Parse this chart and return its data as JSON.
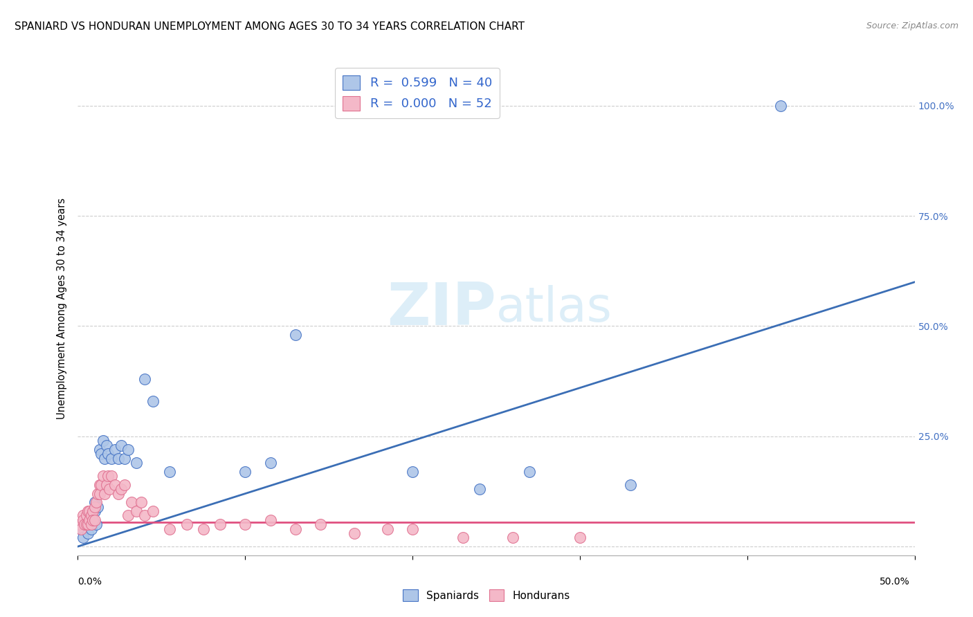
{
  "title": "SPANIARD VS HONDURAN UNEMPLOYMENT AMONG AGES 30 TO 34 YEARS CORRELATION CHART",
  "source": "Source: ZipAtlas.com",
  "ylabel": "Unemployment Among Ages 30 to 34 years",
  "y_ticks": [
    0.0,
    0.25,
    0.5,
    0.75,
    1.0
  ],
  "y_tick_labels": [
    "",
    "25.0%",
    "50.0%",
    "75.0%",
    "100.0%"
  ],
  "xlim": [
    0.0,
    0.5
  ],
  "ylim": [
    -0.02,
    1.1
  ],
  "spaniards_R": "0.599",
  "spaniards_N": "40",
  "hondurans_R": "0.000",
  "hondurans_N": "52",
  "spaniard_color": "#aec6e8",
  "spaniard_edge_color": "#4472c4",
  "honduran_color": "#f4b8c8",
  "honduran_edge_color": "#e07090",
  "honduran_line_color": "#e05080",
  "spaniard_line_color": "#3b6eb5",
  "watermark_color": "#ddeef8",
  "spaniard_x": [
    0.002,
    0.003,
    0.004,
    0.005,
    0.005,
    0.006,
    0.007,
    0.007,
    0.008,
    0.008,
    0.009,
    0.009,
    0.01,
    0.01,
    0.011,
    0.012,
    0.013,
    0.014,
    0.015,
    0.016,
    0.017,
    0.018,
    0.02,
    0.022,
    0.024,
    0.026,
    0.028,
    0.03,
    0.035,
    0.04,
    0.045,
    0.055,
    0.1,
    0.115,
    0.13,
    0.2,
    0.24,
    0.27,
    0.33,
    0.42
  ],
  "spaniard_y": [
    0.04,
    0.02,
    0.05,
    0.06,
    0.05,
    0.03,
    0.07,
    0.05,
    0.06,
    0.04,
    0.08,
    0.06,
    0.08,
    0.1,
    0.05,
    0.09,
    0.22,
    0.21,
    0.24,
    0.2,
    0.23,
    0.21,
    0.2,
    0.22,
    0.2,
    0.23,
    0.2,
    0.22,
    0.19,
    0.38,
    0.33,
    0.17,
    0.17,
    0.19,
    0.48,
    0.17,
    0.13,
    0.17,
    0.14,
    1.0
  ],
  "honduran_x": [
    0.001,
    0.002,
    0.003,
    0.003,
    0.004,
    0.005,
    0.005,
    0.006,
    0.006,
    0.007,
    0.007,
    0.008,
    0.008,
    0.009,
    0.009,
    0.01,
    0.01,
    0.011,
    0.012,
    0.013,
    0.013,
    0.014,
    0.015,
    0.016,
    0.017,
    0.018,
    0.019,
    0.02,
    0.022,
    0.024,
    0.026,
    0.028,
    0.03,
    0.032,
    0.035,
    0.038,
    0.04,
    0.045,
    0.055,
    0.065,
    0.075,
    0.085,
    0.1,
    0.115,
    0.13,
    0.145,
    0.165,
    0.185,
    0.2,
    0.23,
    0.26,
    0.3
  ],
  "honduran_y": [
    0.05,
    0.04,
    0.07,
    0.06,
    0.05,
    0.07,
    0.05,
    0.08,
    0.05,
    0.08,
    0.06,
    0.07,
    0.05,
    0.08,
    0.06,
    0.09,
    0.06,
    0.1,
    0.12,
    0.14,
    0.12,
    0.14,
    0.16,
    0.12,
    0.14,
    0.16,
    0.13,
    0.16,
    0.14,
    0.12,
    0.13,
    0.14,
    0.07,
    0.1,
    0.08,
    0.1,
    0.07,
    0.08,
    0.04,
    0.05,
    0.04,
    0.05,
    0.05,
    0.06,
    0.04,
    0.05,
    0.03,
    0.04,
    0.04,
    0.02,
    0.02,
    0.02
  ],
  "sp_line_x0": 0.0,
  "sp_line_y0": 0.0,
  "sp_line_x1": 0.5,
  "sp_line_y1": 0.6,
  "hon_line_x0": 0.0,
  "hon_line_y0": 0.055,
  "hon_line_x1": 0.5,
  "hon_line_y1": 0.055
}
